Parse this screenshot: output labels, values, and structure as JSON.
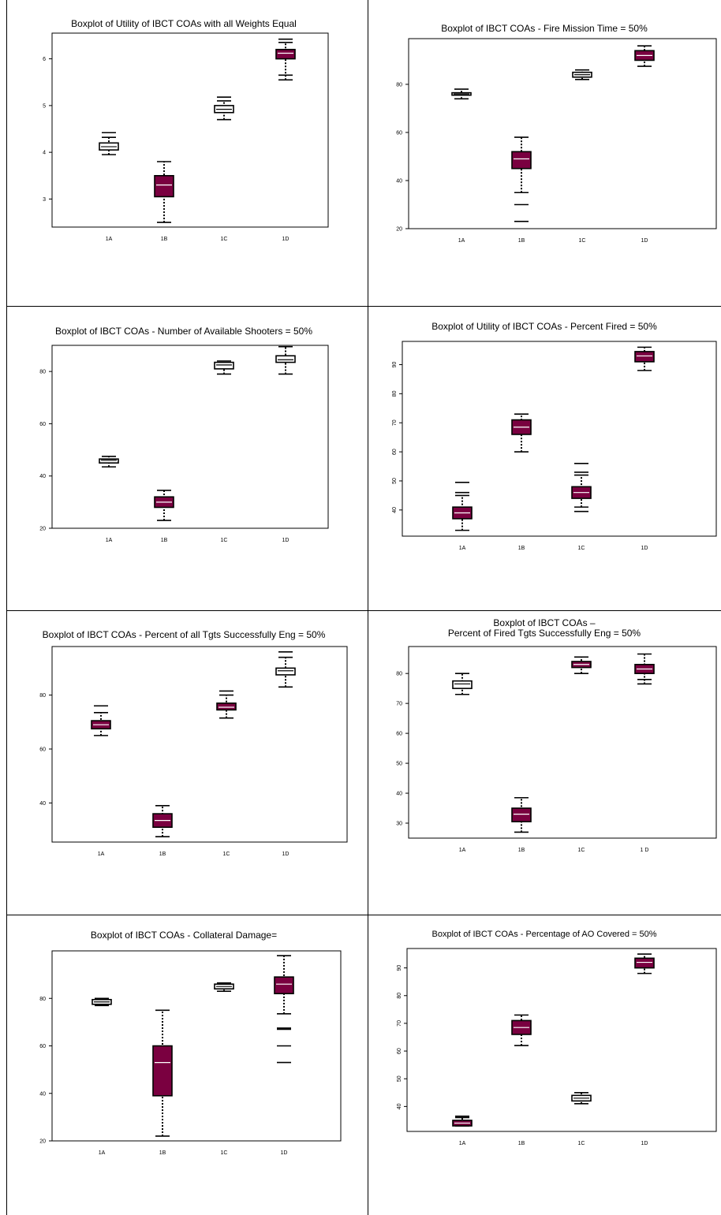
{
  "box_color": "#7a0040",
  "charts": [
    {
      "type": "box",
      "title": "Boxplot of Utility of IBCT COAs with all Weights Equal",
      "categories": [
        "1A",
        "1B",
        "1C",
        "1D"
      ],
      "yticks": [
        "3",
        "4",
        "5",
        "6"
      ],
      "ylim": [
        2.4,
        6.55
      ],
      "boxes": [
        {
          "category": "1A",
          "low": 3.95,
          "q1": 4.05,
          "median": 4.12,
          "q3": 4.2,
          "high": 4.32,
          "filled": false,
          "extras": [
            4.42
          ]
        },
        {
          "category": "1B",
          "low": 2.5,
          "q1": 3.05,
          "median": 3.3,
          "q3": 3.5,
          "high": 3.8,
          "filled": true,
          "extras": []
        },
        {
          "category": "1C",
          "low": 4.7,
          "q1": 4.85,
          "median": 4.92,
          "q3": 5.0,
          "high": 5.1,
          "filled": false,
          "extras": [
            5.18
          ]
        },
        {
          "category": "1D",
          "low": 5.55,
          "q1": 6.0,
          "median": 6.12,
          "q3": 6.2,
          "high": 6.35,
          "filled": true,
          "extras": [
            5.65,
            6.42
          ]
        }
      ]
    },
    {
      "type": "box",
      "title": "Boxplot of IBCT COAs - Fire Mission Time = 50%",
      "categories": [
        "1A",
        "1B",
        "1C",
        "1D"
      ],
      "yticks": [
        "20",
        "40",
        "60",
        "80"
      ],
      "ylim": [
        20,
        99
      ],
      "boxes": [
        {
          "category": "1A",
          "low": 74,
          "q1": 75.5,
          "median": 76,
          "q3": 76.5,
          "high": 78,
          "filled": false,
          "extras": []
        },
        {
          "category": "1B",
          "low": 35,
          "q1": 45,
          "median": 49,
          "q3": 52,
          "high": 58,
          "filled": true,
          "extras": [
            30,
            23
          ]
        },
        {
          "category": "1C",
          "low": 82,
          "q1": 83,
          "median": 84,
          "q3": 85,
          "high": 86,
          "filled": false,
          "extras": []
        },
        {
          "category": "1D",
          "low": 87.5,
          "q1": 90,
          "median": 92,
          "q3": 94,
          "high": 96,
          "filled": true,
          "extras": []
        }
      ]
    },
    {
      "type": "box",
      "title": "Boxplot of IBCT COAs - Number of Available Shooters = 50%",
      "categories": [
        "1A",
        "1B",
        "1C",
        "1D"
      ],
      "yticks": [
        "20",
        "40",
        "60",
        "80"
      ],
      "ylim": [
        20,
        90
      ],
      "boxes": [
        {
          "category": "1A",
          "low": 43.5,
          "q1": 45,
          "median": 46,
          "q3": 46.5,
          "high": 47.5,
          "filled": false,
          "extras": []
        },
        {
          "category": "1B",
          "low": 23,
          "q1": 28,
          "median": 30,
          "q3": 32,
          "high": 34.5,
          "filled": true,
          "extras": []
        },
        {
          "category": "1C",
          "low": 79,
          "q1": 81,
          "median": 82.5,
          "q3": 83.5,
          "high": 84,
          "filled": false,
          "extras": []
        },
        {
          "category": "1D",
          "low": 79,
          "q1": 83.5,
          "median": 84.5,
          "q3": 86,
          "high": 89.5,
          "filled": false,
          "extras": []
        }
      ]
    },
    {
      "type": "box",
      "title": "Boxplot of Utility of IBCT COAs - Percent Fired = 50%",
      "categories": [
        "1A",
        "1B",
        "1C",
        "1D"
      ],
      "yticks": [
        "40",
        "50",
        "60",
        "70",
        "80",
        "90"
      ],
      "ylim": [
        31,
        98
      ],
      "boxes": [
        {
          "category": "1A",
          "low": 33,
          "q1": 37,
          "median": 39,
          "q3": 41,
          "high": 45,
          "filled": true,
          "extras": [
            46,
            49.5
          ]
        },
        {
          "category": "1B",
          "low": 60,
          "q1": 66,
          "median": 68.5,
          "q3": 71,
          "high": 73,
          "filled": true,
          "extras": []
        },
        {
          "category": "1C",
          "low": 41,
          "q1": 44,
          "median": 46,
          "q3": 48,
          "high": 52,
          "filled": true,
          "extras": [
            39.5,
            53,
            56
          ]
        },
        {
          "category": "1D",
          "low": 88,
          "q1": 91,
          "median": 93,
          "q3": 94.5,
          "high": 96,
          "filled": true,
          "extras": []
        }
      ]
    },
    {
      "type": "box",
      "title": "Boxplot of IBCT COAs - Percent of all  Tgts Successfully Eng = 50%",
      "categories": [
        "1A",
        "1B",
        "1C",
        "1D"
      ],
      "yticks": [
        "40",
        "60",
        "80"
      ],
      "ylim": [
        25.5,
        98
      ],
      "boxes": [
        {
          "category": "1A",
          "low": 65,
          "q1": 67.5,
          "median": 69,
          "q3": 70.5,
          "high": 73.5,
          "filled": true,
          "extras": [
            76
          ]
        },
        {
          "category": "1B",
          "low": 27.5,
          "q1": 31,
          "median": 33.5,
          "q3": 36,
          "high": 39,
          "filled": true,
          "extras": []
        },
        {
          "category": "1C",
          "low": 71.5,
          "q1": 74.5,
          "median": 75.5,
          "q3": 77,
          "high": 80,
          "filled": true,
          "extras": [
            81.5
          ]
        },
        {
          "category": "1D",
          "low": 83,
          "q1": 87.5,
          "median": 89,
          "q3": 90,
          "high": 94,
          "filled": false,
          "extras": [
            96
          ]
        }
      ]
    },
    {
      "type": "box",
      "title": "Boxplot of IBCT COAs – Percent of Fired Tgts Successfully Eng = 50%",
      "title_lines": [
        "Boxplot of IBCT COAs –",
        "Percent of Fired Tgts Successfully Eng = 50%"
      ],
      "categories": [
        "1A",
        "1B",
        "1C",
        "1 D"
      ],
      "yticks": [
        "30",
        "40",
        "50",
        "60",
        "70",
        "80"
      ],
      "ylim": [
        25,
        89
      ],
      "boxes": [
        {
          "category": "1A",
          "low": 73,
          "q1": 75,
          "median": 76.5,
          "q3": 77.5,
          "high": 80,
          "filled": false,
          "extras": []
        },
        {
          "category": "1B",
          "low": 27,
          "q1": 30.5,
          "median": 33,
          "q3": 35,
          "high": 38.5,
          "filled": true,
          "extras": []
        },
        {
          "category": "1C",
          "low": 80,
          "q1": 82,
          "median": 83,
          "q3": 84,
          "high": 85.5,
          "filled": true,
          "extras": []
        },
        {
          "category": "1D",
          "low": 76.5,
          "q1": 80,
          "median": 81.5,
          "q3": 83,
          "high": 86.5,
          "filled": true,
          "extras": [
            78
          ]
        }
      ]
    },
    {
      "type": "box",
      "title": "Boxplot of IBCT COAs - Collateral Damage=",
      "categories": [
        "1A",
        "1B",
        "1C",
        "1D"
      ],
      "yticks": [
        "20",
        "40",
        "60",
        "80"
      ],
      "ylim": [
        20,
        100
      ],
      "boxes": [
        {
          "category": "1A",
          "low": 77,
          "q1": 77.5,
          "median": 78.5,
          "q3": 79.5,
          "high": 80,
          "filled": false,
          "extras": []
        },
        {
          "category": "1B",
          "low": 22,
          "q1": 39,
          "median": 53,
          "q3": 60,
          "high": 75,
          "filled": true,
          "extras": []
        },
        {
          "category": "1C",
          "low": 83,
          "q1": 84,
          "median": 85,
          "q3": 86,
          "high": 86.5,
          "filled": false,
          "extras": []
        },
        {
          "category": "1D",
          "low": 73.5,
          "q1": 82,
          "median": 86,
          "q3": 89,
          "high": 98,
          "filled": true,
          "extras": [
            67.5,
            67,
            60,
            53
          ]
        }
      ]
    },
    {
      "type": "box",
      "title": "Boxplot of IBCT COAs - Percentage of AO Covered = 50%",
      "categories": [
        "1A",
        "1B",
        "1C",
        "1D"
      ],
      "yticks": [
        "40",
        "50",
        "60",
        "70",
        "80",
        "90"
      ],
      "ylim": [
        31,
        97
      ],
      "boxes": [
        {
          "category": "1A",
          "low": 33,
          "q1": 33,
          "median": 34,
          "q3": 35,
          "high": 36,
          "filled": true,
          "extras": [
            36.5
          ]
        },
        {
          "category": "1B",
          "low": 62,
          "q1": 66,
          "median": 68.5,
          "q3": 71,
          "high": 73,
          "filled": true,
          "extras": []
        },
        {
          "category": "1C",
          "low": 41,
          "q1": 42,
          "median": 43,
          "q3": 44,
          "high": 45,
          "filled": false,
          "extras": []
        },
        {
          "category": "1D",
          "low": 88,
          "q1": 90,
          "median": 92,
          "q3": 93.5,
          "high": 95,
          "filled": true,
          "extras": []
        }
      ]
    }
  ]
}
